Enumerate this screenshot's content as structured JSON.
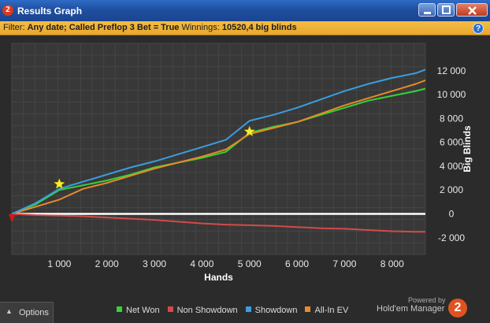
{
  "window": {
    "badge": "2",
    "title": "Results Graph"
  },
  "filter": {
    "prefix": "Filter: ",
    "criteria": "Any date; Called Preflop 3 Bet = True",
    "winnings_label": " Winnings: ",
    "winnings_value": "10520,4 big blinds",
    "help": "?"
  },
  "options": {
    "label": "Options"
  },
  "branding": {
    "powered_by": "Powered by",
    "product": "Hold'em Manager",
    "logo": "2"
  },
  "chart_data": {
    "type": "line",
    "xlabel": "Hands",
    "ylabel": "Big Blinds",
    "xlim": [
      0,
      8700
    ],
    "ylim": [
      -3400,
      14300
    ],
    "x_ticks": [
      1000,
      2000,
      3000,
      4000,
      5000,
      6000,
      7000,
      8000
    ],
    "x_tick_labels": [
      "1 000",
      "2 000",
      "3 000",
      "4 000",
      "5 000",
      "6 000",
      "7 000",
      "8 000"
    ],
    "y_ticks": [
      -2000,
      0,
      2000,
      4000,
      6000,
      8000,
      10000,
      12000
    ],
    "y_tick_labels": [
      "-2 000",
      "0",
      "2 000",
      "4 000",
      "6 000",
      "8 000",
      "10 000",
      "12 000"
    ],
    "grid": true,
    "legend_position": "bottom",
    "series": [
      {
        "name": "Net Won",
        "color": "#34d434",
        "x": [
          0,
          500,
          1000,
          1500,
          2000,
          2500,
          3000,
          3500,
          4000,
          4500,
          5000,
          5500,
          6000,
          6500,
          7000,
          7500,
          8000,
          8500,
          8700
        ],
        "y": [
          0,
          800,
          2000,
          2400,
          2800,
          3300,
          3900,
          4300,
          4700,
          5200,
          6800,
          7300,
          7700,
          8300,
          8900,
          9500,
          9900,
          10300,
          10500
        ]
      },
      {
        "name": "Non Showdown",
        "color": "#d44a4a",
        "x": [
          0,
          500,
          1000,
          1500,
          2000,
          2500,
          3000,
          3500,
          4000,
          4500,
          5000,
          5500,
          6000,
          6500,
          7000,
          7500,
          8000,
          8500,
          8700
        ],
        "y": [
          0,
          -100,
          -150,
          -200,
          -300,
          -400,
          -500,
          -650,
          -800,
          -900,
          -950,
          -1000,
          -1100,
          -1200,
          -1250,
          -1350,
          -1450,
          -1500,
          -1500
        ]
      },
      {
        "name": "Showdown",
        "color": "#3a9ee0",
        "x": [
          0,
          500,
          1000,
          1500,
          2000,
          2500,
          3000,
          3500,
          4000,
          4500,
          5000,
          5500,
          6000,
          6500,
          7000,
          7500,
          8000,
          8500,
          8700
        ],
        "y": [
          0,
          900,
          2100,
          2700,
          3300,
          3900,
          4400,
          5000,
          5600,
          6200,
          7800,
          8300,
          8900,
          9600,
          10300,
          10900,
          11400,
          11800,
          12100
        ]
      },
      {
        "name": "All-In EV",
        "color": "#e88a2a",
        "x": [
          0,
          500,
          1000,
          1500,
          2000,
          2500,
          3000,
          3500,
          4000,
          4500,
          5000,
          5500,
          6000,
          6500,
          7000,
          7500,
          8000,
          8500,
          8700
        ],
        "y": [
          0,
          600,
          1200,
          2100,
          2600,
          3200,
          3800,
          4300,
          4800,
          5400,
          6700,
          7200,
          7700,
          8400,
          9100,
          9700,
          10300,
          10900,
          11200
        ]
      }
    ],
    "markers": [
      {
        "type": "star",
        "x": 1000,
        "y": 2500,
        "color": "#f5f02a"
      },
      {
        "type": "star",
        "x": 5000,
        "y": 6900,
        "color": "#f5f02a"
      },
      {
        "type": "triangle-down",
        "x": 0,
        "y": -400,
        "color": "#cc1a1a"
      }
    ],
    "zero_line_color": "#ffffff"
  }
}
